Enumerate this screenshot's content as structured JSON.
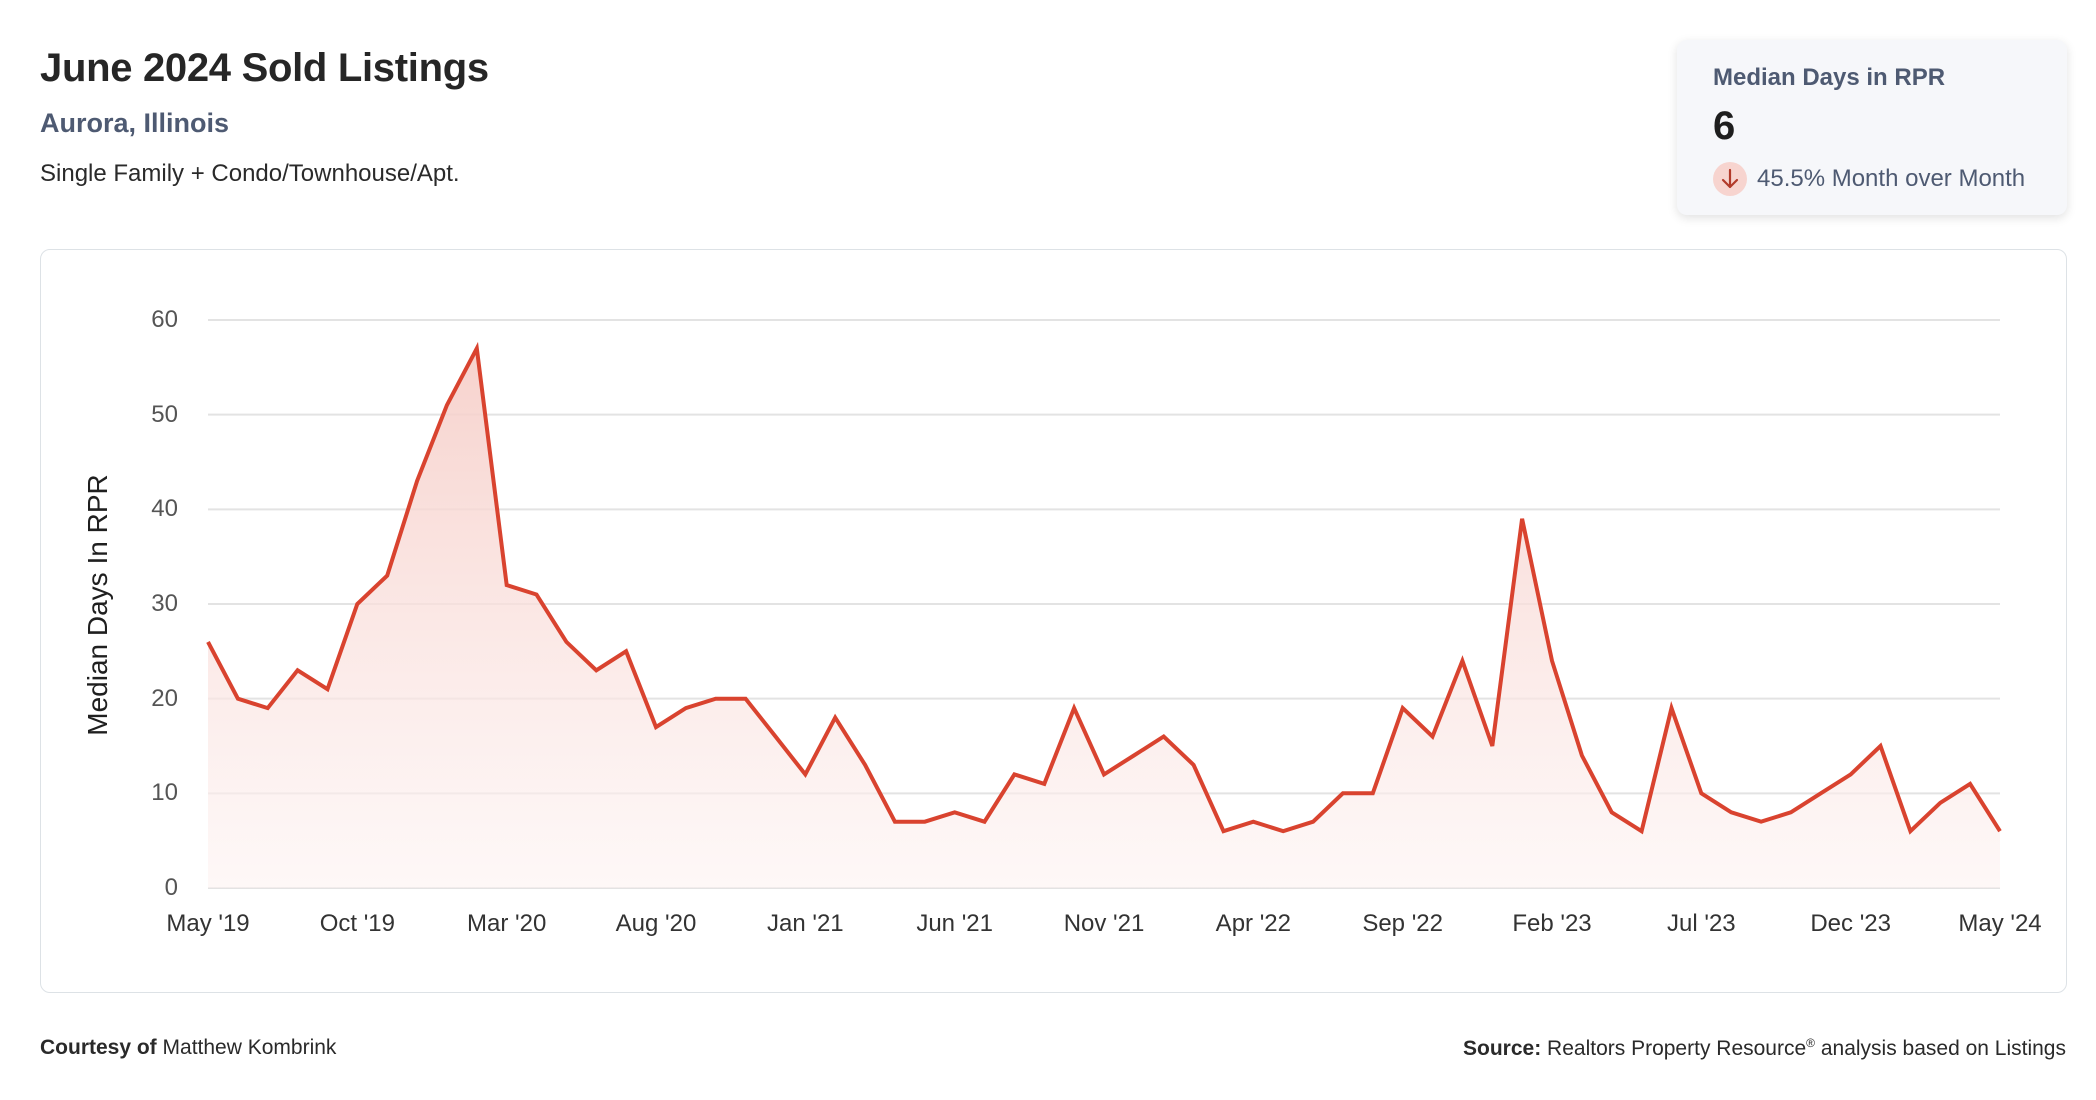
{
  "header": {
    "title": "June 2024 Sold Listings",
    "location": "Aurora, Illinois",
    "property_types": "Single Family + Condo/Townhouse/Apt."
  },
  "kpi_card": {
    "label": "Median Days in RPR",
    "value": "6",
    "change_icon": "arrow-down-icon",
    "change_text": "45.5% Month over Month",
    "change_direction": "down",
    "change_color": "#c0392b"
  },
  "footer": {
    "courtesy_label": "Courtesy of",
    "courtesy_name": "Matthew Kombrink",
    "source_label": "Source:",
    "source_text_1": "Realtors Property Resource",
    "source_reg": "®",
    "source_text_2": " analysis based on Listings"
  },
  "colors": {
    "line": "#d9432f",
    "fill_top": "#f8d7d3",
    "grid": "#e3e3e3"
  },
  "chart_data": {
    "type": "area",
    "title": "Median Days In RPR",
    "xlabel": "",
    "ylabel": "Median Days In RPR",
    "ylim": [
      0,
      60
    ],
    "yticks": [
      0,
      10,
      20,
      30,
      40,
      50,
      60
    ],
    "grid": true,
    "legend": null,
    "xtick_labels": [
      "May '19",
      "Oct '19",
      "Mar '20",
      "Aug '20",
      "Jan '21",
      "Jun '21",
      "Nov '21",
      "Apr '22",
      "Sep '22",
      "Feb '23",
      "Jul '23",
      "Dec '23",
      "May '24"
    ],
    "x": [
      "May '19",
      "Jun '19",
      "Jul '19",
      "Aug '19",
      "Sep '19",
      "Oct '19",
      "Nov '19",
      "Dec '19",
      "Jan '20",
      "Feb '20",
      "Mar '20",
      "Apr '20",
      "May '20",
      "Jun '20",
      "Jul '20",
      "Aug '20",
      "Sep '20",
      "Oct '20",
      "Nov '20",
      "Dec '20",
      "Jan '21",
      "Feb '21",
      "Mar '21",
      "Apr '21",
      "May '21",
      "Jun '21",
      "Jul '21",
      "Aug '21",
      "Sep '21",
      "Oct '21",
      "Nov '21",
      "Dec '21",
      "Jan '22",
      "Feb '22",
      "Mar '22",
      "Apr '22",
      "May '22",
      "Jun '22",
      "Jul '22",
      "Aug '22",
      "Sep '22",
      "Oct '22",
      "Nov '22",
      "Dec '22",
      "Jan '23",
      "Feb '23",
      "Mar '23",
      "Apr '23",
      "May '23",
      "Jun '23",
      "Jul '23",
      "Aug '23",
      "Sep '23",
      "Oct '23",
      "Nov '23",
      "Dec '23",
      "Jan '24",
      "Feb '24",
      "Mar '24",
      "Apr '24",
      "May '24"
    ],
    "series": [
      {
        "name": "Median Days in RPR",
        "values": [
          26,
          20,
          19,
          23,
          21,
          30,
          33,
          43,
          51,
          57,
          32,
          31,
          26,
          23,
          25,
          17,
          19,
          20,
          20,
          16,
          12,
          18,
          13,
          7,
          7,
          8,
          7,
          12,
          11,
          19,
          12,
          14,
          16,
          13,
          6,
          7,
          6,
          7,
          10,
          10,
          19,
          16,
          24,
          15,
          39,
          24,
          14,
          8,
          6,
          19,
          10,
          8,
          7,
          8,
          10,
          12,
          15,
          6,
          9,
          11,
          6
        ]
      }
    ]
  }
}
